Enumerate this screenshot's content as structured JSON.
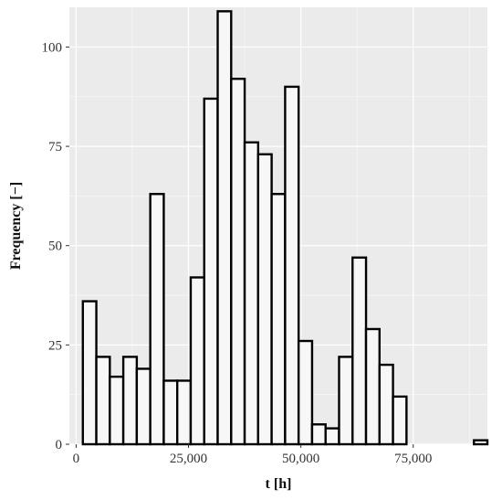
{
  "chart_data": {
    "type": "bar",
    "title": "",
    "xlabel": "t [h]",
    "ylabel": "Frequency [−]",
    "xlim": [
      -1500,
      91500
    ],
    "ylim": [
      0,
      110
    ],
    "bin_width": 3000,
    "x_ticks": [
      0,
      25000,
      50000,
      75000
    ],
    "x_tick_labels": [
      "0",
      "25,000",
      "50,000",
      "75,000"
    ],
    "y_ticks": [
      0,
      25,
      50,
      75,
      100
    ],
    "y_tick_labels": [
      "0",
      "25",
      "50",
      "75",
      "100"
    ],
    "bin_starts": [
      1500,
      4500,
      7500,
      10500,
      13500,
      16500,
      19500,
      22500,
      25500,
      28500,
      31500,
      34500,
      37500,
      40500,
      43500,
      46500,
      49500,
      52500,
      55500,
      58500,
      61500,
      64500,
      67500,
      70500,
      73500,
      76500,
      79500,
      82500,
      85500,
      88500
    ],
    "values": [
      36,
      22,
      17,
      22,
      19,
      63,
      16,
      16,
      42,
      87,
      109,
      92,
      76,
      73,
      63,
      90,
      26,
      5,
      4,
      22,
      47,
      29,
      20,
      12,
      0,
      0,
      0,
      0,
      0,
      1
    ],
    "grid": true,
    "legend": "none",
    "colors": {
      "panel_background": "#ebebeb",
      "bar_fill": "#f7f7f7",
      "bar_outline": "#000000",
      "grid": "#ffffff"
    }
  }
}
